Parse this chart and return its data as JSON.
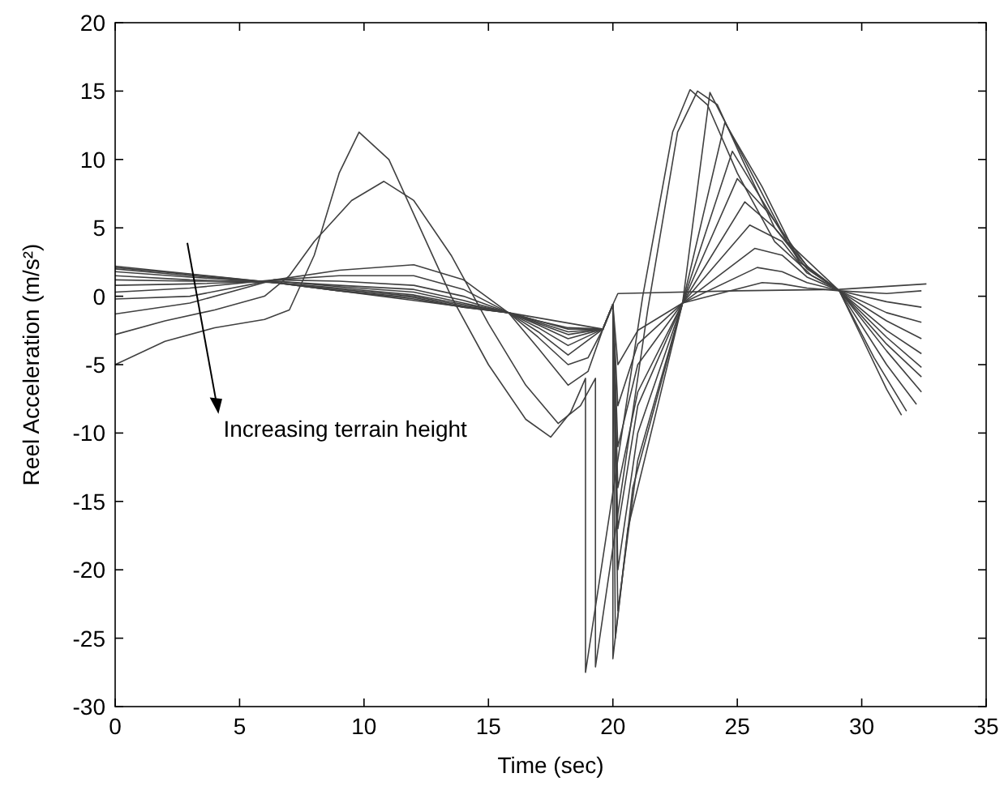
{
  "chart_data": {
    "type": "line",
    "xlabel": "Time (sec)",
    "ylabel": "Reel Acceleration (m/s²)",
    "xlim": [
      0,
      35
    ],
    "ylim": [
      -30,
      20
    ],
    "xticks": [
      0,
      5,
      10,
      15,
      20,
      25,
      30,
      35
    ],
    "yticks": [
      -30,
      -25,
      -20,
      -15,
      -10,
      -5,
      0,
      5,
      10,
      15,
      20
    ],
    "marker": "none",
    "line_style": "solid",
    "annotations": [
      "Increasing terrain height"
    ],
    "series": [
      {
        "color": "#404040",
        "x": [
          0,
          6.4,
          15.8,
          19.6,
          20,
          20.2,
          25,
          29.1,
          32.6
        ],
        "values": [
          2.2,
          1.0,
          -1.2,
          -2.4,
          -0.6,
          0.2,
          0.4,
          0.5,
          0.9
        ]
      },
      {
        "color": "#404040",
        "x": [
          0,
          3,
          6.4,
          9,
          12,
          14,
          15.8,
          17,
          18.2,
          19.6,
          20,
          20.2,
          21,
          22.8,
          26,
          26.8,
          27.8,
          29.1,
          31,
          32.4
        ],
        "values": [
          2.1,
          1.6,
          1.0,
          0.4,
          -0.2,
          -0.8,
          -1.2,
          -1.8,
          -2.3,
          -2.4,
          -0.6,
          -5,
          -2.5,
          -0.5,
          1,
          0.9,
          0.6,
          0.4,
          0.2,
          0.4
        ]
      },
      {
        "color": "#404040",
        "x": [
          0,
          3,
          6.4,
          9,
          12,
          14,
          15.8,
          17,
          18.2,
          19.6,
          20,
          20.2,
          21,
          22.8,
          25.8,
          26.8,
          27.8,
          29.1,
          31,
          32.4
        ],
        "values": [
          2.0,
          1.5,
          1.0,
          0.4,
          -0.1,
          -0.8,
          -1.2,
          -1.8,
          -2.4,
          -2.4,
          -0.6,
          -8,
          -3.5,
          -0.5,
          2.1,
          1.8,
          1,
          0.4,
          -0.4,
          -0.8
        ]
      },
      {
        "color": "#404040",
        "x": [
          0,
          3,
          6.4,
          9,
          12,
          14,
          15.8,
          17,
          18.2,
          19.6,
          20,
          20.2,
          21,
          22.8,
          25.7,
          26.8,
          27.8,
          29.1,
          31,
          32.4
        ],
        "values": [
          1.8,
          1.4,
          1.0,
          0.5,
          0,
          -0.7,
          -1.2,
          -1.9,
          -2.6,
          -2.4,
          -0.6,
          -11,
          -5,
          -0.5,
          3.5,
          3,
          1.4,
          0.4,
          -1.2,
          -1.9
        ]
      },
      {
        "color": "#404040",
        "x": [
          0,
          3,
          6.4,
          9,
          12,
          14,
          15.8,
          17,
          18.2,
          19.6,
          20,
          20.2,
          21,
          22.8,
          25.5,
          26.8,
          27.8,
          29.1,
          31,
          32.4
        ],
        "values": [
          1.5,
          1.2,
          1.0,
          0.6,
          0.1,
          -0.6,
          -1.2,
          -2,
          -2.8,
          -2.4,
          -0.6,
          -14,
          -7,
          -0.5,
          5.2,
          4,
          1.7,
          0.4,
          -1.8,
          -3.1
        ]
      },
      {
        "color": "#404040",
        "x": [
          0,
          3,
          6.4,
          9,
          12,
          14,
          15.8,
          17,
          18.2,
          19.6,
          20,
          20.2,
          21,
          22.8,
          25.3,
          26.5,
          27.8,
          29.1,
          31,
          32.4
        ],
        "values": [
          1.2,
          1.1,
          1.1,
          0.7,
          0.3,
          -0.5,
          -1.2,
          -2.1,
          -3.1,
          -2.4,
          -0.6,
          -17,
          -8,
          -0.5,
          6.9,
          5,
          2,
          0.4,
          -2.5,
          -4.2
        ]
      },
      {
        "color": "#404040",
        "x": [
          0,
          3,
          6.4,
          9,
          12,
          14,
          15.8,
          17,
          18.2,
          19.6,
          20,
          20.2,
          21,
          22.8,
          25,
          26.3,
          27.8,
          29.1,
          31,
          32.4
        ],
        "values": [
          0.8,
          0.9,
          1.1,
          0.8,
          0.5,
          -0.3,
          -1.2,
          -2.3,
          -3.6,
          -2.4,
          -0.6,
          -20,
          -10,
          -0.5,
          8.6,
          6,
          2.2,
          0.4,
          -3,
          -5.2
        ]
      },
      {
        "color": "#404040",
        "x": [
          0,
          3,
          6.4,
          9,
          12,
          14,
          15.8,
          17,
          18.2,
          19.6,
          20,
          20.2,
          21,
          22.8,
          24.8,
          26,
          27.5,
          29.1,
          31,
          32.4
        ],
        "values": [
          0.3,
          0.6,
          1.2,
          1.1,
          0.8,
          0,
          -1.2,
          -2.6,
          -4.3,
          -2.4,
          -0.6,
          -23,
          -12,
          -0.5,
          10.6,
          7,
          2.5,
          0.4,
          -3.5,
          -5.9
        ]
      },
      {
        "color": "#404040",
        "x": [
          0,
          3,
          6.4,
          9,
          12,
          14,
          15.8,
          17,
          18.2,
          19,
          19.6,
          20,
          20.1,
          20.8,
          22.8,
          24.5,
          26,
          27.5,
          29.1,
          31,
          32.4
        ],
        "values": [
          -0.2,
          0,
          1.2,
          1.5,
          1.5,
          0.5,
          -1.2,
          -3,
          -5,
          -4.5,
          -2.4,
          -0.6,
          -25,
          -14,
          -0.5,
          12.7,
          8,
          2.5,
          0.4,
          -4,
          -7
        ]
      },
      {
        "color": "#404040",
        "x": [
          0,
          3,
          6.4,
          9,
          12,
          14,
          15.8,
          17,
          18.2,
          19,
          19.6,
          20,
          20,
          20.6,
          22.8,
          23.9,
          25,
          27,
          29.1,
          31,
          32.2
        ],
        "values": [
          -1.3,
          -0.5,
          1.2,
          1.9,
          2.3,
          1.2,
          -1.2,
          -3.8,
          -6.5,
          -5.5,
          -2.4,
          -0.6,
          -26.5,
          -17,
          -0.5,
          14.9,
          11,
          4,
          0.4,
          -5,
          -7.9
        ]
      },
      {
        "color": "#404040",
        "x": [
          0,
          2,
          4,
          6,
          7,
          8,
          9.5,
          10.8,
          12,
          13.5,
          15,
          16.5,
          17.8,
          18.7,
          19.3,
          19.3,
          21.4,
          22.6,
          23.4,
          24.2,
          25.2,
          26.5,
          28,
          29.1,
          30.5,
          31.8
        ],
        "values": [
          -2.8,
          -1.8,
          -1,
          0,
          1.5,
          4,
          7,
          8.4,
          7,
          3,
          -2,
          -6.5,
          -9.3,
          -8,
          -6,
          -27.1,
          -1,
          12,
          15,
          14,
          10,
          5,
          1.8,
          0.4,
          -4.5,
          -8.4
        ]
      },
      {
        "color": "#404040",
        "x": [
          0,
          2,
          4,
          6,
          7,
          8,
          9,
          9.8,
          11,
          12,
          13.5,
          15,
          16.5,
          17.5,
          18.3,
          18.9,
          18.9,
          21.2,
          22.4,
          23.1,
          23.8,
          25,
          26.5,
          28,
          29.1,
          30,
          31,
          31.6
        ],
        "values": [
          -5,
          -3.3,
          -2.3,
          -1.7,
          -1,
          3,
          9,
          12,
          10,
          6,
          0,
          -5,
          -9,
          -10.3,
          -8.5,
          -6,
          -27.5,
          0,
          12,
          15.1,
          14,
          9,
          4,
          1.5,
          0.4,
          -3,
          -6.8,
          -8.7
        ]
      }
    ]
  }
}
